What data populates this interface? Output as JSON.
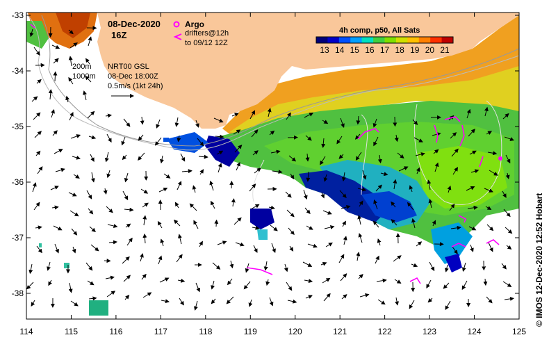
{
  "header": {
    "date": "08-Dec-2020",
    "time": "16Z"
  },
  "legend": {
    "argo_label": "Argo",
    "drifters_line1": "drifters@12h",
    "drifters_line2": "to 09/12 12Z",
    "depth_200": "200m",
    "depth_1000": "1000m",
    "product": "NRT00 GSL",
    "product_time": "08-Dec 18:00Z",
    "vector_scale": "0.5m/s (1kt 24h)",
    "colorbar_title": "4h comp, p50, All Sats",
    "colorbar_ticks": [
      "13",
      "14",
      "15",
      "16",
      "17",
      "18",
      "19",
      "20",
      "21"
    ]
  },
  "axes": {
    "lon_ticks": [
      "114",
      "115",
      "116",
      "117",
      "118",
      "119",
      "120",
      "121",
      "122",
      "123",
      "124",
      "125"
    ],
    "lat_ticks": [
      "-33",
      "-34",
      "-35",
      "-36",
      "-37",
      "-38"
    ]
  },
  "credit": "© IMOS 12-Dec-2020 12:52 Hobart",
  "colors": {
    "land": "#f9c79a",
    "argo": "#ff00ff",
    "colormap": [
      "#00007a",
      "#0000c8",
      "#0050ff",
      "#00a0ff",
      "#00e0c0",
      "#40d040",
      "#80e000",
      "#d0e000",
      "#ffc000",
      "#ff8000",
      "#ff3000",
      "#c00000"
    ]
  }
}
